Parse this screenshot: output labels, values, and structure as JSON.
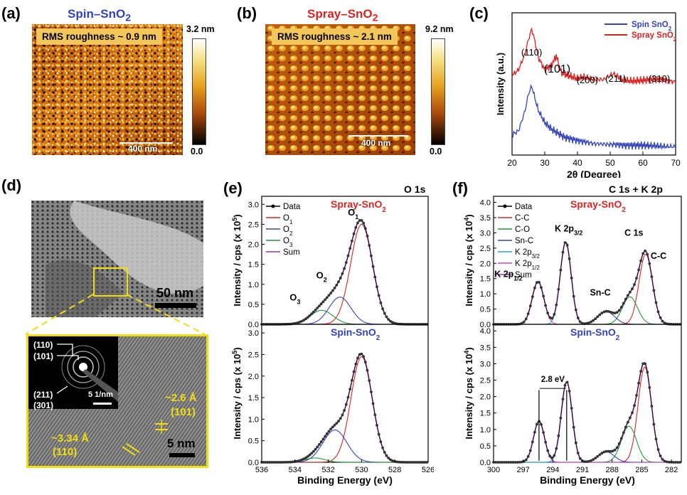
{
  "panels": {
    "a": {
      "label": "(a)",
      "title": "Spin–SnO2",
      "rms": "RMS roughness ~ 0.9 nm",
      "scale": "400 nm",
      "cbar_max": "3.2 nm",
      "cbar_min": "0.0"
    },
    "b": {
      "label": "(b)",
      "title": "Spray–SnO2",
      "rms": "RMS roughness ~ 2.1 nm",
      "scale": "400 nm",
      "cbar_max": "9.2 nm",
      "cbar_min": "0.0"
    },
    "c": {
      "label": "(c)"
    },
    "d": {
      "label": "(d)",
      "scale_top": "50 nm",
      "saed_labels": [
        "(110)",
        "(101)",
        "(211)",
        "(301)"
      ],
      "saed_scale": "5 1/nm",
      "d1": "~2.6 Å",
      "d1_plane": "(101)",
      "d2": "~3.34 Å",
      "d2_plane": "(110)",
      "scale_bottom": "5 nm"
    },
    "e": {
      "label": "(e)",
      "corner": "O 1s",
      "top_title": "Spray-SnO2",
      "bottom_title": "Spin-SnO2",
      "peak_O1": "O1",
      "peak_O2": "O2",
      "peak_O3": "O3"
    },
    "f": {
      "label": "(f)",
      "corner": "C 1s + K 2p",
      "top_title": "Spray-SnO2",
      "bottom_title": "Spin-SnO2",
      "ann_k12": "K 2p1/2",
      "ann_k32": "K 2p3/2",
      "ann_snc": "Sn-C",
      "ann_c1s": "C 1s",
      "ann_cc": "C-C",
      "ann_shift": "2.8 eV"
    }
  },
  "chart_data": [
    {
      "id": "c",
      "type": "line",
      "xlabel": "2θ (Degree)",
      "ylabel": "Intensity (a.u.)",
      "xlim": [
        20,
        70
      ],
      "xticks": [
        20,
        30,
        40,
        50,
        60,
        70
      ],
      "legend_position": "top-right",
      "series": [
        {
          "name": "Spin SnO2",
          "color": "#3344bb",
          "x": [
            20,
            22,
            24,
            25,
            26,
            27,
            28,
            30,
            32,
            34,
            36,
            40,
            45,
            50,
            52,
            55,
            60,
            65,
            70
          ],
          "values": [
            0.25,
            0.3,
            0.55,
            0.75,
            0.85,
            0.7,
            0.55,
            0.4,
            0.32,
            0.27,
            0.22,
            0.18,
            0.14,
            0.13,
            0.13,
            0.12,
            0.12,
            0.11,
            0.1
          ]
        },
        {
          "name": "Spray SnO2",
          "color": "#dd2222",
          "x": [
            20,
            22,
            24,
            25,
            26,
            27,
            28,
            30,
            32,
            33.5,
            35,
            37,
            40,
            42,
            45,
            48,
            51,
            54,
            57,
            60,
            63,
            66,
            68,
            70
          ],
          "values": [
            0.98,
            1.05,
            1.25,
            1.42,
            1.55,
            1.4,
            1.2,
            1.05,
            1.1,
            1.22,
            1.02,
            0.98,
            0.94,
            0.96,
            0.93,
            0.93,
            1.0,
            0.92,
            0.91,
            0.92,
            0.93,
            0.93,
            0.91,
            0.9
          ]
        }
      ],
      "annotations": [
        {
          "text": "(110)",
          "x": 26
        },
        {
          "text": "(101)",
          "x": 33.8
        },
        {
          "text": "(200)",
          "x": 43
        },
        {
          "text": "(211)",
          "x": 51.7
        },
        {
          "text": "(310)",
          "x": 65
        }
      ]
    },
    {
      "id": "e",
      "type": "line",
      "xlabel": "Binding Energy (eV)",
      "ylabel": "Intensity / cps (x 10^5)",
      "xlim": [
        536,
        526
      ],
      "ylim": [
        0,
        3.2
      ],
      "xticks": [
        536,
        534,
        532,
        530,
        528,
        526
      ],
      "yticks": [
        0.0,
        0.5,
        1.0,
        1.5,
        2.0,
        2.5,
        3.0
      ],
      "legend_position": "top-left",
      "legend": [
        "Data",
        "O1",
        "O2",
        "O3",
        "Sum"
      ],
      "colors": {
        "Data": "#000000",
        "O1": "#dd2222",
        "O2": "#3344bb",
        "O3": "#229933",
        "Sum": "#9933bb"
      },
      "subplots": [
        {
          "title": "Spray-SnO2",
          "components": [
            {
              "name": "O1",
              "center": 530.0,
              "height": 2.5,
              "fwhm": 1.55
            },
            {
              "name": "O2",
              "center": 531.3,
              "height": 0.68,
              "fwhm": 1.55
            },
            {
              "name": "O3",
              "center": 532.4,
              "height": 0.35,
              "fwhm": 1.6
            }
          ]
        },
        {
          "title": "Spin-SnO2",
          "components": [
            {
              "name": "O1",
              "center": 530.0,
              "height": 2.45,
              "fwhm": 1.5
            },
            {
              "name": "O2",
              "center": 531.6,
              "height": 0.75,
              "fwhm": 1.7
            },
            {
              "name": "O3",
              "center": 532.8,
              "height": 0.1,
              "fwhm": 1.4
            }
          ]
        }
      ]
    },
    {
      "id": "f",
      "type": "line",
      "xlabel": "Binding Energy (eV)",
      "ylabel": "Intensity / cps (x 10^4)",
      "xlim": [
        300,
        281
      ],
      "ylim": [
        0,
        4.2
      ],
      "xticks": [
        300,
        297,
        294,
        291,
        288,
        285,
        282
      ],
      "yticks": [
        0.0,
        0.5,
        1.0,
        1.5,
        2.0,
        2.5,
        3.0,
        3.5,
        4.0
      ],
      "legend_position": "top-left",
      "legend": [
        "Data",
        "C-C",
        "C-O",
        "Sn-C",
        "K 2p3/2",
        "K 2p1/2",
        "Sum"
      ],
      "colors": {
        "Data": "#000000",
        "C-C": "#dd2222",
        "C-O": "#229933",
        "Sn-C": "#3344bb",
        "K 2p3/2": "#22aacc",
        "K 2p1/2": "#cc44cc",
        "Sum": "#9933bb"
      },
      "subplots": [
        {
          "title": "Spray-SnO2",
          "components": [
            {
              "name": "C-C",
              "center": 284.6,
              "height": 2.3,
              "fwhm": 1.6
            },
            {
              "name": "C-O",
              "center": 286.2,
              "height": 0.9,
              "fwhm": 1.8
            },
            {
              "name": "Sn-C",
              "center": 288.6,
              "height": 0.42,
              "fwhm": 2.0
            },
            {
              "name": "K 2p3/2",
              "center": 292.7,
              "height": 2.7,
              "fwhm": 1.3
            },
            {
              "name": "K 2p1/2",
              "center": 295.5,
              "height": 1.4,
              "fwhm": 1.4
            }
          ]
        },
        {
          "title": "Spin-SnO2",
          "components": [
            {
              "name": "C-C",
              "center": 284.7,
              "height": 2.9,
              "fwhm": 1.6
            },
            {
              "name": "C-O",
              "center": 286.3,
              "height": 1.1,
              "fwhm": 1.8
            },
            {
              "name": "Sn-C",
              "center": 288.6,
              "height": 0.32,
              "fwhm": 1.9
            },
            {
              "name": "K 2p3/2",
              "center": 292.6,
              "height": 2.45,
              "fwhm": 1.3
            },
            {
              "name": "K 2p1/2",
              "center": 295.4,
              "height": 1.25,
              "fwhm": 1.3
            }
          ]
        }
      ]
    }
  ]
}
